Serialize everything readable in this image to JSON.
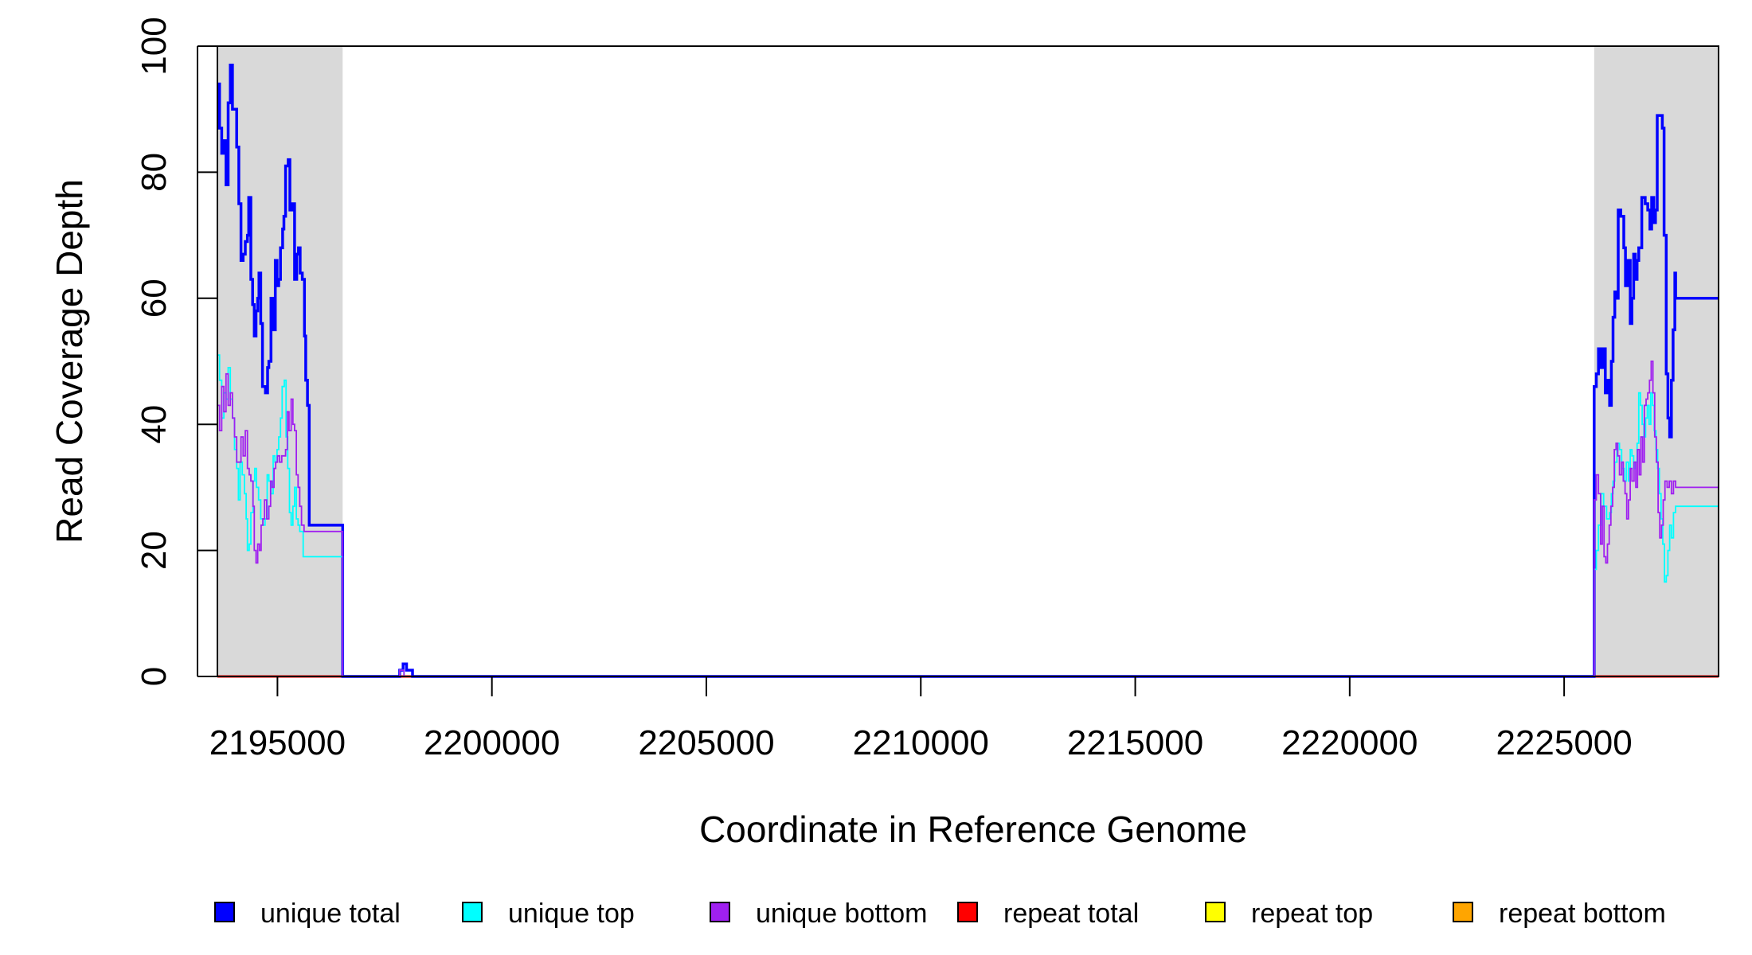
{
  "chart_data": {
    "type": "line",
    "xlabel": "Coordinate in Reference Genome",
    "ylabel": "Read Coverage Depth",
    "xlim": [
      2193600,
      2228600
    ],
    "ylim": [
      0,
      100
    ],
    "x_ticks": [
      2195000,
      2200000,
      2205000,
      2210000,
      2215000,
      2220000,
      2225000
    ],
    "x_tick_labels": [
      "2195000",
      "2200000",
      "2205000",
      "2210000",
      "2215000",
      "2220000",
      "2225000"
    ],
    "y_ticks": [
      0,
      20,
      40,
      60,
      80,
      100
    ],
    "y_tick_labels": [
      "0",
      "20",
      "40",
      "60",
      "80",
      "100"
    ],
    "grid": false,
    "legend_position": "bottom",
    "shaded_regions": [
      {
        "x": [
          2193600,
          2196520
        ],
        "color": "#d9d9d9"
      },
      {
        "x": [
          2225700,
          2228600
        ],
        "color": "#d9d9d9"
      }
    ],
    "series": [
      {
        "name": "unique total",
        "color": "#0000ff",
        "step": true,
        "points": [
          [
            2193600,
            94
          ],
          [
            2193650,
            87
          ],
          [
            2193700,
            83
          ],
          [
            2193750,
            85
          ],
          [
            2193800,
            78
          ],
          [
            2193850,
            91
          ],
          [
            2193900,
            97
          ],
          [
            2193950,
            90
          ],
          [
            2194050,
            84
          ],
          [
            2194100,
            75
          ],
          [
            2194150,
            66
          ],
          [
            2194200,
            67
          ],
          [
            2194250,
            69
          ],
          [
            2194300,
            70
          ],
          [
            2194330,
            76
          ],
          [
            2194380,
            63
          ],
          [
            2194420,
            59
          ],
          [
            2194460,
            54
          ],
          [
            2194500,
            58
          ],
          [
            2194540,
            60
          ],
          [
            2194570,
            64
          ],
          [
            2194610,
            56
          ],
          [
            2194650,
            46
          ],
          [
            2194720,
            45
          ],
          [
            2194770,
            49
          ],
          [
            2194800,
            50
          ],
          [
            2194850,
            60
          ],
          [
            2194900,
            55
          ],
          [
            2194950,
            66
          ],
          [
            2194990,
            62
          ],
          [
            2195030,
            63
          ],
          [
            2195070,
            68
          ],
          [
            2195120,
            71
          ],
          [
            2195150,
            73
          ],
          [
            2195190,
            81
          ],
          [
            2195250,
            82
          ],
          [
            2195290,
            74
          ],
          [
            2195340,
            75
          ],
          [
            2195400,
            63
          ],
          [
            2195450,
            67
          ],
          [
            2195490,
            68
          ],
          [
            2195530,
            64
          ],
          [
            2195580,
            63
          ],
          [
            2195630,
            54
          ],
          [
            2195660,
            47
          ],
          [
            2195700,
            43
          ],
          [
            2195740,
            24
          ],
          [
            2196520,
            0
          ],
          [
            2197850,
            1
          ],
          [
            2197930,
            2
          ],
          [
            2198010,
            1
          ],
          [
            2198150,
            0
          ],
          [
            2225700,
            46
          ],
          [
            2225750,
            48
          ],
          [
            2225800,
            52
          ],
          [
            2225860,
            49
          ],
          [
            2225920,
            52
          ],
          [
            2225960,
            45
          ],
          [
            2226010,
            47
          ],
          [
            2226060,
            43
          ],
          [
            2226100,
            50
          ],
          [
            2226140,
            57
          ],
          [
            2226180,
            61
          ],
          [
            2226220,
            60
          ],
          [
            2226260,
            74
          ],
          [
            2226320,
            73
          ],
          [
            2226390,
            68
          ],
          [
            2226430,
            62
          ],
          [
            2226480,
            66
          ],
          [
            2226540,
            56
          ],
          [
            2226580,
            60
          ],
          [
            2226620,
            67
          ],
          [
            2226660,
            63
          ],
          [
            2226700,
            66
          ],
          [
            2226740,
            68
          ],
          [
            2226810,
            76
          ],
          [
            2226890,
            75
          ],
          [
            2226950,
            74
          ],
          [
            2227000,
            71
          ],
          [
            2227040,
            76
          ],
          [
            2227090,
            72
          ],
          [
            2227130,
            74
          ],
          [
            2227170,
            89
          ],
          [
            2227290,
            87
          ],
          [
            2227330,
            70
          ],
          [
            2227380,
            48
          ],
          [
            2227420,
            41
          ],
          [
            2227460,
            38
          ],
          [
            2227500,
            47
          ],
          [
            2227540,
            55
          ],
          [
            2227580,
            64
          ],
          [
            2227600,
            60
          ]
        ]
      },
      {
        "name": "unique top",
        "color": "#00ffff",
        "step": true,
        "points": [
          [
            2193600,
            51
          ],
          [
            2193650,
            47
          ],
          [
            2193700,
            41
          ],
          [
            2193750,
            45
          ],
          [
            2193800,
            44
          ],
          [
            2193850,
            49
          ],
          [
            2193900,
            44
          ],
          [
            2193950,
            41
          ],
          [
            2194000,
            36
          ],
          [
            2194050,
            33
          ],
          [
            2194090,
            28
          ],
          [
            2194130,
            34
          ],
          [
            2194180,
            32
          ],
          [
            2194230,
            29
          ],
          [
            2194270,
            25
          ],
          [
            2194300,
            20
          ],
          [
            2194340,
            21
          ],
          [
            2194380,
            26
          ],
          [
            2194430,
            31
          ],
          [
            2194470,
            33
          ],
          [
            2194510,
            30
          ],
          [
            2194560,
            28
          ],
          [
            2194610,
            25
          ],
          [
            2194660,
            24
          ],
          [
            2194710,
            25
          ],
          [
            2194760,
            32
          ],
          [
            2194800,
            31
          ],
          [
            2194850,
            29
          ],
          [
            2194900,
            35
          ],
          [
            2194940,
            34
          ],
          [
            2194990,
            36
          ],
          [
            2195030,
            38
          ],
          [
            2195070,
            41
          ],
          [
            2195110,
            46
          ],
          [
            2195160,
            47
          ],
          [
            2195200,
            38
          ],
          [
            2195240,
            33
          ],
          [
            2195280,
            26
          ],
          [
            2195320,
            24
          ],
          [
            2195360,
            27
          ],
          [
            2195400,
            30
          ],
          [
            2195440,
            25
          ],
          [
            2195480,
            24
          ],
          [
            2195520,
            23
          ],
          [
            2195600,
            19
          ],
          [
            2196520,
            0
          ],
          [
            2197850,
            1
          ],
          [
            2197950,
            0
          ],
          [
            2225700,
            17
          ],
          [
            2225750,
            20
          ],
          [
            2225800,
            24
          ],
          [
            2225860,
            29
          ],
          [
            2225920,
            27
          ],
          [
            2225990,
            25
          ],
          [
            2226060,
            26
          ],
          [
            2226100,
            29
          ],
          [
            2226140,
            31
          ],
          [
            2226180,
            34
          ],
          [
            2226230,
            37
          ],
          [
            2226290,
            36
          ],
          [
            2226340,
            33
          ],
          [
            2226400,
            31
          ],
          [
            2226450,
            34
          ],
          [
            2226500,
            31
          ],
          [
            2226540,
            36
          ],
          [
            2226580,
            35
          ],
          [
            2226620,
            33
          ],
          [
            2226660,
            34
          ],
          [
            2226700,
            37
          ],
          [
            2226740,
            45
          ],
          [
            2226780,
            43
          ],
          [
            2226820,
            40
          ],
          [
            2226860,
            38
          ],
          [
            2226900,
            41
          ],
          [
            2226940,
            43
          ],
          [
            2226980,
            40
          ],
          [
            2227020,
            45
          ],
          [
            2227060,
            43
          ],
          [
            2227100,
            39
          ],
          [
            2227140,
            36
          ],
          [
            2227180,
            33
          ],
          [
            2227220,
            29
          ],
          [
            2227260,
            25
          ],
          [
            2227300,
            21
          ],
          [
            2227340,
            15
          ],
          [
            2227380,
            16
          ],
          [
            2227420,
            20
          ],
          [
            2227460,
            24
          ],
          [
            2227500,
            22
          ],
          [
            2227550,
            26
          ],
          [
            2227600,
            27
          ]
        ]
      },
      {
        "name": "unique bottom",
        "color": "#a020f0",
        "step": true,
        "points": [
          [
            2193600,
            43
          ],
          [
            2193650,
            39
          ],
          [
            2193700,
            46
          ],
          [
            2193750,
            42
          ],
          [
            2193800,
            48
          ],
          [
            2193850,
            43
          ],
          [
            2193900,
            45
          ],
          [
            2193950,
            41
          ],
          [
            2194000,
            38
          ],
          [
            2194050,
            34
          ],
          [
            2194100,
            34
          ],
          [
            2194150,
            38
          ],
          [
            2194200,
            35
          ],
          [
            2194250,
            39
          ],
          [
            2194300,
            33
          ],
          [
            2194340,
            32
          ],
          [
            2194380,
            31
          ],
          [
            2194430,
            27
          ],
          [
            2194460,
            20
          ],
          [
            2194500,
            18
          ],
          [
            2194540,
            21
          ],
          [
            2194580,
            20
          ],
          [
            2194620,
            24
          ],
          [
            2194660,
            25
          ],
          [
            2194700,
            28
          ],
          [
            2194750,
            25
          ],
          [
            2194800,
            27
          ],
          [
            2194840,
            31
          ],
          [
            2194880,
            30
          ],
          [
            2194920,
            33
          ],
          [
            2194960,
            34
          ],
          [
            2195000,
            35
          ],
          [
            2195050,
            34
          ],
          [
            2195100,
            35
          ],
          [
            2195140,
            35
          ],
          [
            2195190,
            36
          ],
          [
            2195230,
            42
          ],
          [
            2195270,
            39
          ],
          [
            2195320,
            44
          ],
          [
            2195360,
            40
          ],
          [
            2195400,
            39
          ],
          [
            2195440,
            32
          ],
          [
            2195480,
            30
          ],
          [
            2195520,
            27
          ],
          [
            2195560,
            24
          ],
          [
            2195620,
            23
          ],
          [
            2196520,
            0
          ],
          [
            2197850,
            1
          ],
          [
            2197950,
            0
          ],
          [
            2225700,
            28
          ],
          [
            2225750,
            32
          ],
          [
            2225800,
            29
          ],
          [
            2225850,
            21
          ],
          [
            2225890,
            27
          ],
          [
            2225930,
            19
          ],
          [
            2225970,
            18
          ],
          [
            2226010,
            21
          ],
          [
            2226050,
            24
          ],
          [
            2226090,
            27
          ],
          [
            2226130,
            30
          ],
          [
            2226170,
            36
          ],
          [
            2226210,
            37
          ],
          [
            2226250,
            35
          ],
          [
            2226290,
            32
          ],
          [
            2226340,
            34
          ],
          [
            2226380,
            31
          ],
          [
            2226420,
            29
          ],
          [
            2226460,
            25
          ],
          [
            2226500,
            28
          ],
          [
            2226540,
            33
          ],
          [
            2226580,
            31
          ],
          [
            2226630,
            34
          ],
          [
            2226670,
            30
          ],
          [
            2226710,
            36
          ],
          [
            2226750,
            32
          ],
          [
            2226790,
            38
          ],
          [
            2226830,
            34
          ],
          [
            2226870,
            43
          ],
          [
            2226910,
            44
          ],
          [
            2226950,
            45
          ],
          [
            2226990,
            47
          ],
          [
            2227030,
            50
          ],
          [
            2227070,
            45
          ],
          [
            2227110,
            38
          ],
          [
            2227150,
            34
          ],
          [
            2227190,
            26
          ],
          [
            2227230,
            22
          ],
          [
            2227270,
            24
          ],
          [
            2227310,
            28
          ],
          [
            2227350,
            31
          ],
          [
            2227400,
            30
          ],
          [
            2227450,
            31
          ],
          [
            2227500,
            29
          ],
          [
            2227550,
            31
          ],
          [
            2227600,
            30
          ]
        ]
      },
      {
        "name": "repeat total",
        "color": "#ff0000",
        "step": true,
        "points": [
          [
            2193600,
            0
          ],
          [
            2228600,
            0
          ]
        ]
      },
      {
        "name": "repeat top",
        "color": "#ffff00",
        "step": true,
        "points": [
          [
            2193600,
            0
          ],
          [
            2228600,
            0
          ]
        ]
      },
      {
        "name": "repeat bottom",
        "color": "#ffa500",
        "step": true,
        "points": [
          [
            2193600,
            0
          ],
          [
            2228600,
            0
          ]
        ]
      }
    ]
  }
}
